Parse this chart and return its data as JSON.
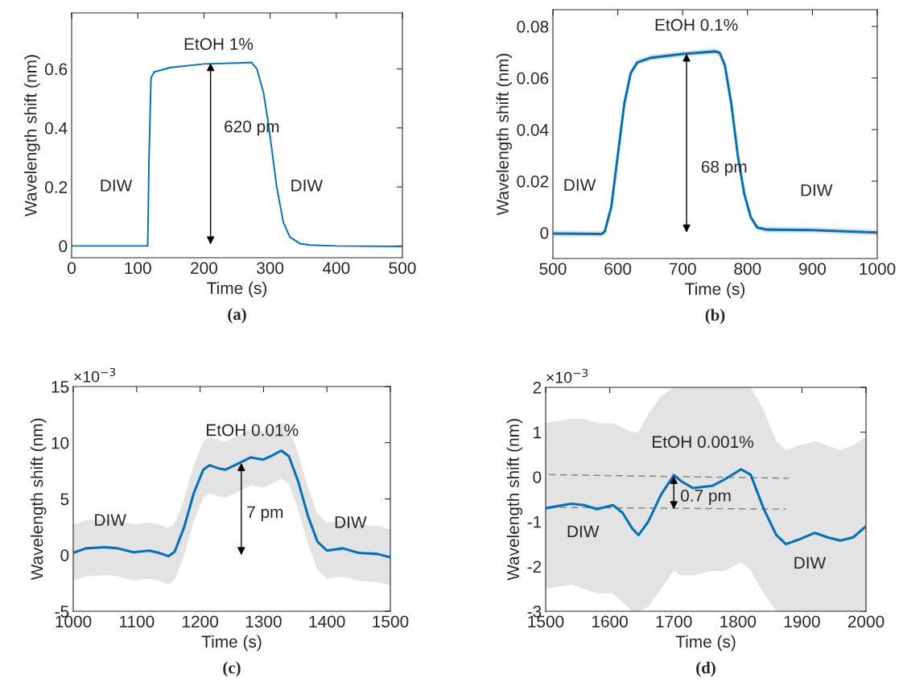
{
  "chart_data": [
    {
      "type": "line",
      "xlabel": "Time (s)",
      "ylabel": "Wavelength shift (nm)",
      "xlim": [
        0,
        500
      ],
      "ylim": [
        -0.04,
        0.79
      ],
      "xticks": [
        0,
        100,
        200,
        300,
        400,
        500
      ],
      "yticks": [
        0,
        0.2,
        0.4,
        0.6
      ],
      "series": [
        {
          "color": "#0072bd",
          "x": [
            0,
            115,
            117,
            120,
            125,
            150,
            200,
            250,
            272,
            280,
            290,
            297,
            303,
            310,
            320,
            330,
            345,
            360,
            400,
            500
          ],
          "values": [
            0,
            0,
            0.3,
            0.57,
            0.59,
            0.605,
            0.617,
            0.62,
            0.622,
            0.6,
            0.52,
            0.42,
            0.32,
            0.2,
            0.08,
            0.03,
            0.008,
            0.003,
            0,
            -0.002
          ]
        }
      ],
      "annotations": [
        "EtOH 1%",
        "620 pm",
        "DIW",
        "DIW",
        "(a)"
      ]
    },
    {
      "type": "line",
      "xlabel": "Time (s)",
      "ylabel": "Wavelength shift (nm)",
      "xlim": [
        500,
        1000
      ],
      "ylim": [
        -0.01,
        0.0865
      ],
      "xticks": [
        500,
        600,
        700,
        800,
        900,
        1000
      ],
      "yticks": [
        0,
        0.02,
        0.04,
        0.06,
        0.08
      ],
      "series": [
        {
          "color": "#0072bd",
          "x": [
            500,
            575,
            580,
            590,
            600,
            610,
            620,
            630,
            650,
            700,
            750,
            757,
            765,
            775,
            785,
            795,
            805,
            815,
            830,
            900,
            1000
          ],
          "values": [
            -0.0003,
            -0.0005,
            0.0005,
            0.01,
            0.03,
            0.05,
            0.062,
            0.066,
            0.0678,
            0.0693,
            0.0703,
            0.0698,
            0.065,
            0.05,
            0.03,
            0.015,
            0.006,
            0.002,
            0.0012,
            0.001,
            0.0001
          ],
          "lower": [
            -0.0015,
            -0.0017,
            -0.0007,
            0.0088,
            0.0288,
            0.0488,
            0.0608,
            0.0648,
            0.0666,
            0.0681,
            0.0691,
            0.0686,
            0.0638,
            0.0488,
            0.0288,
            0.0138,
            0.0048,
            0.0008,
            0,
            -0.0002,
            -0.0011
          ],
          "upper": [
            0.0009,
            0.0007,
            0.0017,
            0.0112,
            0.0312,
            0.0512,
            0.0632,
            0.0672,
            0.069,
            0.0705,
            0.0715,
            0.071,
            0.0662,
            0.0512,
            0.0312,
            0.0162,
            0.0072,
            0.0032,
            0.0024,
            0.0022,
            0.0013
          ]
        }
      ],
      "annotations": [
        "EtOH 0.1%",
        "68 pm",
        "DIW",
        "DIW",
        "(b)"
      ]
    },
    {
      "type": "line",
      "xlabel": "Time (s)",
      "ylabel": "Wavelength shift (nm)",
      "xlim": [
        1000,
        1500
      ],
      "ylim": [
        -5,
        15
      ],
      "xticks": [
        1000,
        1100,
        1200,
        1300,
        1400,
        1500
      ],
      "yticks": [
        -5,
        0,
        5,
        10,
        15
      ],
      "series": [
        {
          "color": "#0072bd",
          "x": [
            1000,
            1020,
            1050,
            1070,
            1095,
            1120,
            1135,
            1150,
            1160,
            1175,
            1190,
            1205,
            1215,
            1230,
            1240,
            1255,
            1280,
            1300,
            1315,
            1328,
            1340,
            1355,
            1370,
            1385,
            1400,
            1425,
            1450,
            1480,
            1500
          ],
          "values": [
            0.2,
            0.6,
            0.7,
            0.6,
            0.25,
            0.4,
            0.2,
            -0.1,
            0.3,
            2.5,
            5.5,
            7.6,
            8.0,
            7.7,
            7.6,
            8.0,
            8.7,
            8.5,
            8.9,
            9.3,
            8.8,
            6.5,
            3.5,
            1.2,
            0.4,
            0.6,
            0.2,
            0.1,
            -0.2
          ],
          "lower": [
            -2.3,
            -1.9,
            -1.8,
            -1.9,
            -2.25,
            -2.1,
            -2.3,
            -2.6,
            -2.2,
            0,
            3,
            5.1,
            5.5,
            5.2,
            5.1,
            5.5,
            6.2,
            6.0,
            6.4,
            6.8,
            6.3,
            4.0,
            1.0,
            -1.3,
            -2.1,
            -1.9,
            -2.3,
            -2.4,
            -2.7
          ],
          "upper": [
            2.7,
            3.1,
            3.2,
            3.1,
            2.75,
            2.9,
            2.7,
            2.4,
            2.8,
            5,
            8,
            10.1,
            10.5,
            10.2,
            10.1,
            10.5,
            11.2,
            11.0,
            11.4,
            11.8,
            11.3,
            9.0,
            6.0,
            3.7,
            2.9,
            3.1,
            2.7,
            2.6,
            2.3
          ]
        }
      ],
      "annotations": [
        "EtOH 0.01%",
        "7 pm",
        "DIW",
        "DIW",
        "×10$^{−3}$",
        "(c)"
      ]
    },
    {
      "type": "line",
      "xlabel": "Time (s)",
      "ylabel": "Wavelength shift (nm)",
      "xlim": [
        1500,
        2000
      ],
      "ylim": [
        -3,
        2
      ],
      "xticks": [
        1500,
        1600,
        1700,
        1800,
        1900,
        2000
      ],
      "yticks": [
        -3,
        -2,
        -1,
        0,
        1,
        2
      ],
      "series": [
        {
          "color": "#0072bd",
          "x": [
            1500,
            1540,
            1560,
            1580,
            1605,
            1620,
            1635,
            1645,
            1660,
            1680,
            1700,
            1712,
            1730,
            1760,
            1780,
            1805,
            1820,
            1840,
            1860,
            1875,
            1895,
            1920,
            1940,
            1960,
            1980,
            2000
          ],
          "values": [
            -0.7,
            -0.6,
            -0.63,
            -0.72,
            -0.63,
            -0.8,
            -1.15,
            -1.3,
            -1.0,
            -0.4,
            0.04,
            -0.1,
            -0.25,
            -0.2,
            -0.05,
            0.17,
            0.05,
            -0.7,
            -1.3,
            -1.5,
            -1.4,
            -1.25,
            -1.35,
            -1.42,
            -1.35,
            -1.1
          ],
          "lower": [
            -2.5,
            -2.4,
            -2.5,
            -2.6,
            -2.6,
            -2.8,
            -3,
            -3,
            -2.9,
            -2.5,
            -2.1,
            -2.2,
            -2.2,
            -2.1,
            -2.1,
            -1.9,
            -2.1,
            -2.6,
            -3,
            -3,
            -3,
            -3,
            -3,
            -3,
            -3,
            -3
          ],
          "upper": [
            1.2,
            1.3,
            1.3,
            1.2,
            1.2,
            1.1,
            1.0,
            1.0,
            1.4,
            1.8,
            2,
            2,
            2,
            2,
            2,
            2,
            2,
            1.5,
            0.8,
            0.6,
            0.7,
            0.8,
            0.7,
            0.6,
            0.7,
            0.9
          ]
        },
        {
          "type": "line",
          "line_style": "dashed",
          "color": "#808080",
          "x": [
            1505,
            1880
          ],
          "values": [
            0.05,
            -0.03
          ]
        },
        {
          "type": "line",
          "line_style": "dashed",
          "color": "#808080",
          "x": [
            1505,
            1875
          ],
          "values": [
            -0.68,
            -0.72
          ]
        }
      ],
      "annotations": [
        "EtOH 0.001%",
        "0.7 pm",
        "DIW",
        "DIW",
        "×10$^{−3}$",
        "(d)"
      ]
    }
  ]
}
